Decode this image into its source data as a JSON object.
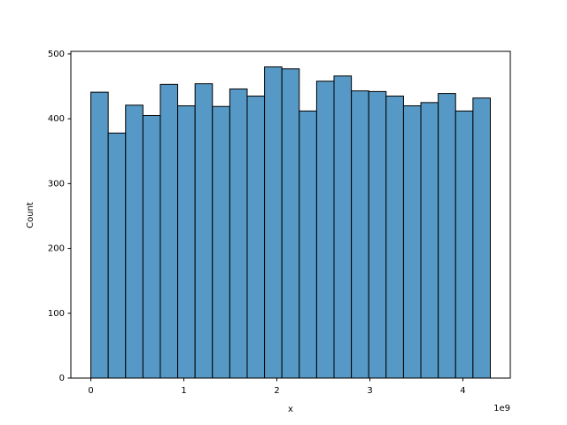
{
  "chart_data": {
    "type": "histogram",
    "xlabel": "x",
    "ylabel": "Count",
    "x_offset_text": "1e9",
    "bins": [
      0,
      186737709,
      373475417,
      560213126,
      746950834,
      933688543,
      1120426251,
      1307163960,
      1493901668,
      1680639377,
      1867377085,
      2054114794,
      2240852503,
      2427590211,
      2614327920,
      2801065628,
      2987803337,
      3174541045,
      3361278754,
      3548016462,
      3734754171,
      3921491879,
      4108229588,
      4294967296
    ],
    "values": [
      441,
      378,
      421,
      405,
      453,
      420,
      454,
      419,
      446,
      435,
      480,
      477,
      412,
      458,
      466,
      443,
      442,
      435,
      420,
      425,
      439,
      412,
      432
    ],
    "color": "#5799c6",
    "edgecolor": "#000000",
    "xlim": [
      -214748365,
      4509715661
    ],
    "ylim": [
      0,
      504
    ],
    "xticks": [
      {
        "value": 0,
        "label": "0"
      },
      {
        "value": 1000000000,
        "label": "1"
      },
      {
        "value": 2000000000,
        "label": "2"
      },
      {
        "value": 3000000000,
        "label": "3"
      },
      {
        "value": 4000000000,
        "label": "4"
      }
    ],
    "yticks": [
      0,
      100,
      200,
      300,
      400,
      500
    ],
    "grid": false
  }
}
